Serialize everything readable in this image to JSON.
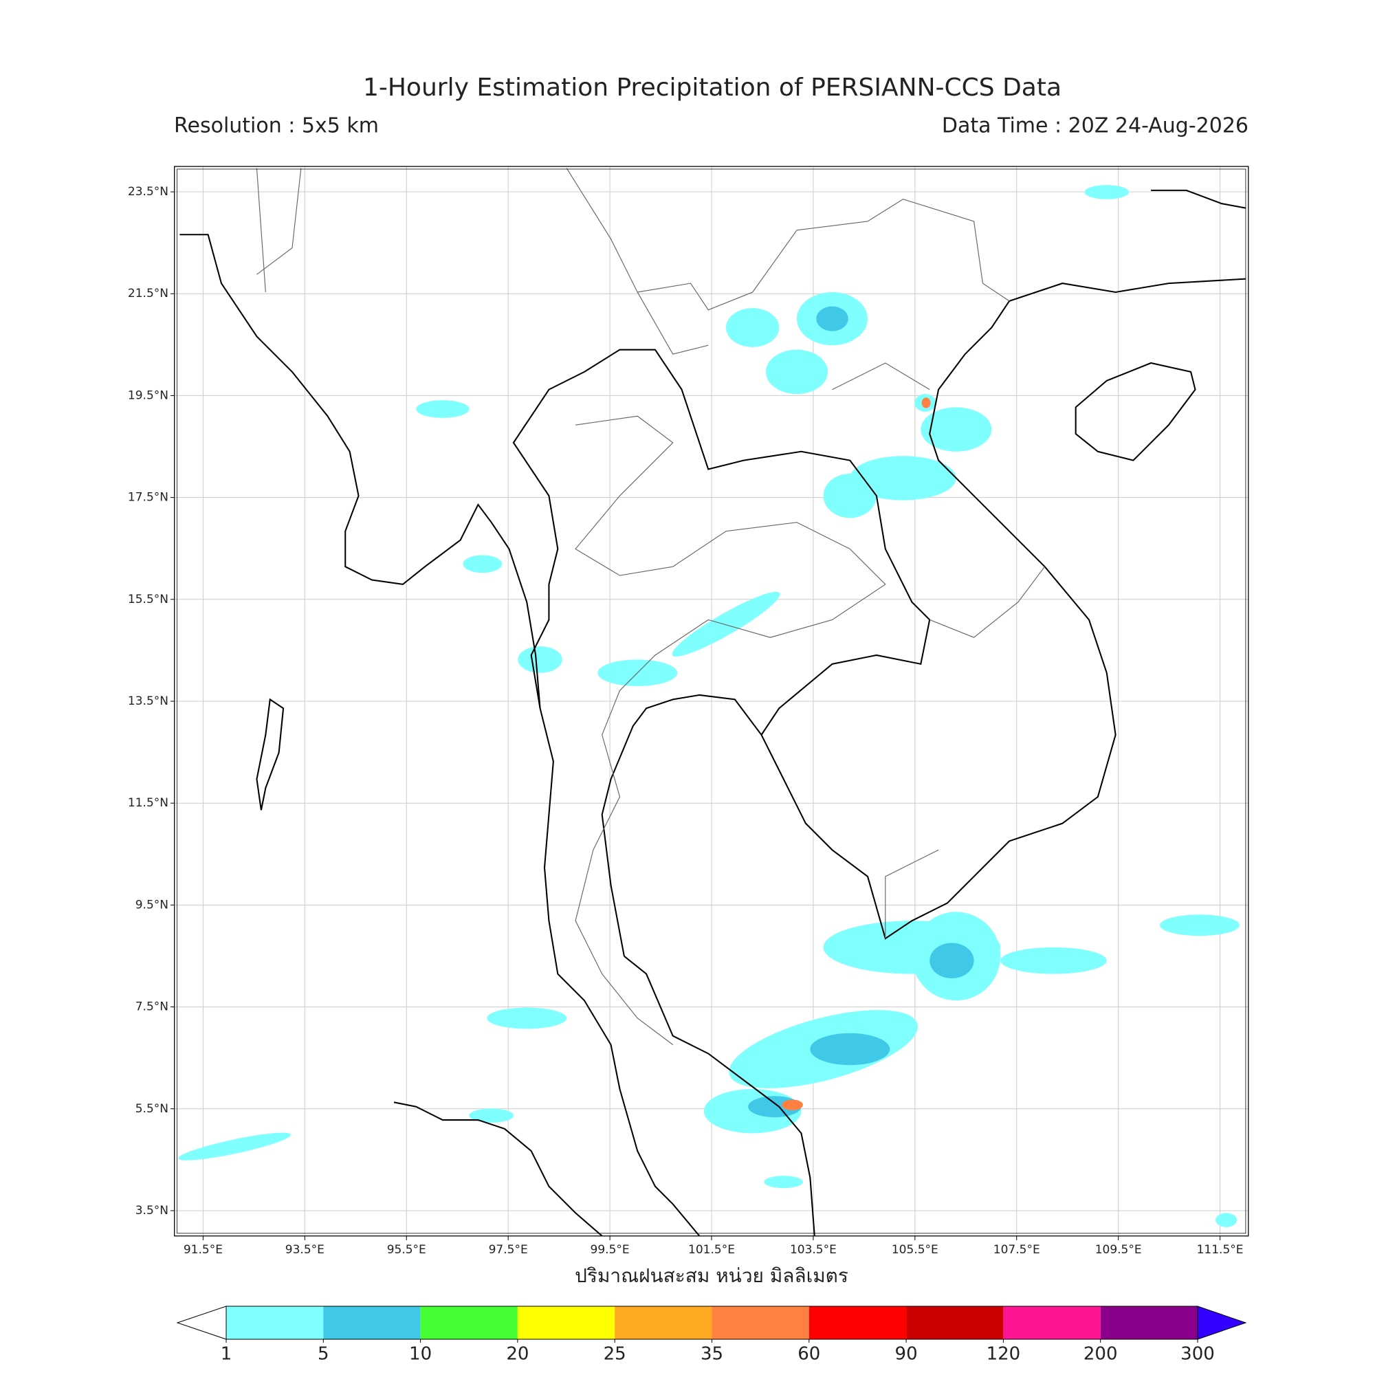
{
  "header": {
    "title": "1-Hourly Estimation Precipitation of PERSIANN-CCS Data",
    "resolution": "Resolution : 5x5 km",
    "data_time": "Data Time : 20Z 24-Aug-2026"
  },
  "map": {
    "xlim": [
      90.94,
      112.06
    ],
    "ylim": [
      3.0,
      24.0
    ],
    "grid": true,
    "xlabel": "ปริมาณฝนสะสม หน่วย มิลลิเมตร",
    "xticks": [
      {
        "value": 91.5,
        "label": "91.5°E"
      },
      {
        "value": 93.5,
        "label": "93.5°E"
      },
      {
        "value": 95.5,
        "label": "95.5°E"
      },
      {
        "value": 97.5,
        "label": "97.5°E"
      },
      {
        "value": 99.5,
        "label": "99.5°E"
      },
      {
        "value": 101.5,
        "label": "101.5°E"
      },
      {
        "value": 103.5,
        "label": "103.5°E"
      },
      {
        "value": 105.5,
        "label": "105.5°E"
      },
      {
        "value": 107.5,
        "label": "107.5°E"
      },
      {
        "value": 109.5,
        "label": "109.5°E"
      },
      {
        "value": 111.5,
        "label": "111.5°E"
      }
    ],
    "yticks": [
      {
        "value": 3.5,
        "label": "3.5°N"
      },
      {
        "value": 5.5,
        "label": "5.5°N"
      },
      {
        "value": 7.5,
        "label": "7.5°N"
      },
      {
        "value": 9.5,
        "label": "9.5°N"
      },
      {
        "value": 11.5,
        "label": "11.5°N"
      },
      {
        "value": 13.5,
        "label": "13.5°N"
      },
      {
        "value": 15.5,
        "label": "15.5°N"
      },
      {
        "value": 17.5,
        "label": "17.5°N"
      },
      {
        "value": 19.5,
        "label": "19.5°N"
      },
      {
        "value": 21.5,
        "label": "21.5°N"
      },
      {
        "value": 23.5,
        "label": "23.5°N"
      }
    ]
  },
  "colorbar": {
    "levels": [
      1,
      5,
      10,
      20,
      25,
      35,
      60,
      90,
      120,
      200,
      300
    ],
    "colors": [
      "#80ffff",
      "#3fc8e8",
      "#44ff33",
      "#ffff00",
      "#ffaa22",
      "#ff8040",
      "#ff0000",
      "#cc0000",
      "#ff1493",
      "#8b008b"
    ],
    "under_color": "#ffffff",
    "over_color": "#3300ff"
  }
}
